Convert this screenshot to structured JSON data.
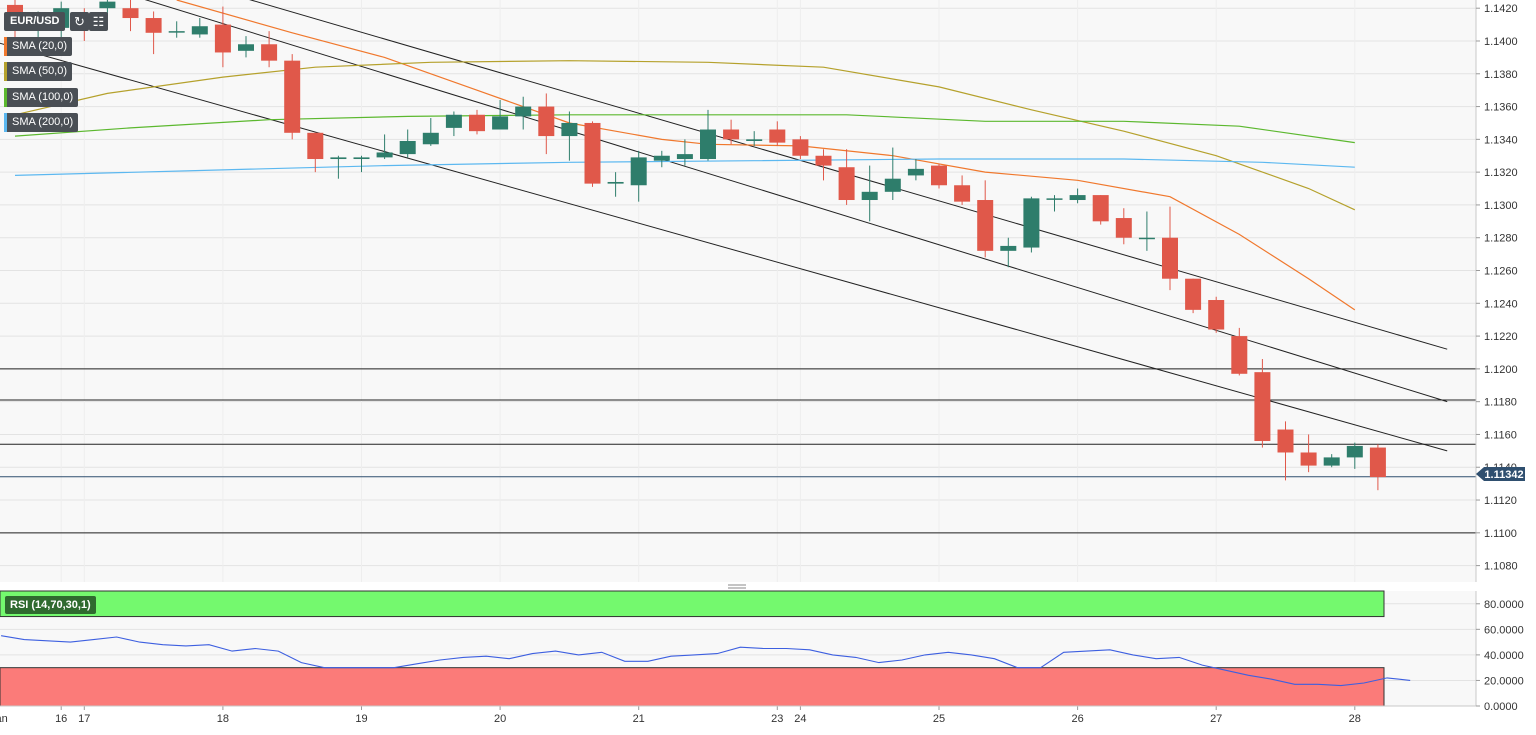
{
  "chart_header": {
    "symbol": "EUR/USD",
    "refresh_icon": "refresh-icon",
    "settings_icon": "chart-settings-icon"
  },
  "indicators": [
    {
      "label": "SMA (20,0)",
      "color": "#f0782d"
    },
    {
      "label": "SMA (50,0)",
      "color": "#b5a12c"
    },
    {
      "label": "SMA (100,0)",
      "color": "#5cb82f"
    },
    {
      "label": "SMA (200,0)",
      "color": "#5cb8f0"
    }
  ],
  "price_label": "1.11342",
  "rsi_label": "RSI (14,70,30,1)",
  "colors": {
    "up": "#2e7d6b",
    "down": "#e0584a",
    "background": "#f8f8f8",
    "rsi_overbought": "#74f96e",
    "rsi_oversold": "#fb7b79",
    "rsi_line": "#3d5fe0",
    "price_tag": "#2f4f6f"
  },
  "chart_data": [
    {
      "type": "candlestick",
      "title": "EUR/USD",
      "ylim": [
        1.107,
        1.1425
      ],
      "y_ticks": [
        "1.1080",
        "1.1100",
        "1.1120",
        "1.1140",
        "1.1160",
        "1.1180",
        "1.1200",
        "1.1220",
        "1.1240",
        "1.1260",
        "1.1280",
        "1.1300",
        "1.1320",
        "1.1340",
        "1.1360",
        "1.1380",
        "1.1400",
        "1.1420"
      ],
      "x_tick_labels": [
        "Jan",
        "16",
        "17",
        "18",
        "19",
        "20",
        "21",
        "23",
        "24",
        "25",
        "26",
        "27",
        "28"
      ],
      "candles": [
        [
          1.1422,
          1.1426,
          1.1395,
          1.1412
        ],
        [
          1.1408,
          1.1418,
          1.1398,
          1.141
        ],
        [
          1.1408,
          1.1424,
          1.1402,
          1.142
        ],
        [
          1.1415,
          1.142,
          1.14,
          1.1408
        ],
        [
          1.142,
          1.1428,
          1.1414,
          1.1424
        ],
        [
          1.142,
          1.1425,
          1.1406,
          1.1414
        ],
        [
          1.1414,
          1.1418,
          1.1392,
          1.1405
        ],
        [
          1.1406,
          1.1412,
          1.1402,
          1.1406
        ],
        [
          1.1404,
          1.1414,
          1.1402,
          1.1409
        ],
        [
          1.141,
          1.1421,
          1.1384,
          1.1393
        ],
        [
          1.1394,
          1.1403,
          1.139,
          1.1398
        ],
        [
          1.1398,
          1.1406,
          1.1384,
          1.1388
        ],
        [
          1.1388,
          1.1392,
          1.134,
          1.1344
        ],
        [
          1.1344,
          1.1344,
          1.132,
          1.1328
        ],
        [
          1.1328,
          1.133,
          1.1316,
          1.1329
        ],
        [
          1.1328,
          1.133,
          1.132,
          1.1329
        ],
        [
          1.1329,
          1.1343,
          1.1328,
          1.1332
        ],
        [
          1.1331,
          1.1346,
          1.1329,
          1.1339
        ],
        [
          1.1337,
          1.1353,
          1.1336,
          1.1344
        ],
        [
          1.1347,
          1.1357,
          1.1342,
          1.1355
        ],
        [
          1.1355,
          1.1358,
          1.1343,
          1.1345
        ],
        [
          1.1346,
          1.1364,
          1.1346,
          1.1354
        ],
        [
          1.1354,
          1.1366,
          1.1346,
          1.136
        ],
        [
          1.136,
          1.1368,
          1.1331,
          1.1342
        ],
        [
          1.1342,
          1.1357,
          1.1327,
          1.135
        ],
        [
          1.135,
          1.1351,
          1.1311,
          1.1313
        ],
        [
          1.1313,
          1.132,
          1.1305,
          1.1314
        ],
        [
          1.1312,
          1.1333,
          1.1302,
          1.1329
        ],
        [
          1.1327,
          1.1333,
          1.1323,
          1.133
        ],
        [
          1.1328,
          1.134,
          1.1324,
          1.1331
        ],
        [
          1.1328,
          1.1358,
          1.1327,
          1.1346
        ],
        [
          1.1346,
          1.1352,
          1.1337,
          1.134
        ],
        [
          1.1339,
          1.1345,
          1.1336,
          1.134
        ],
        [
          1.1346,
          1.1351,
          1.1336,
          1.1338
        ],
        [
          1.134,
          1.1342,
          1.1328,
          1.133
        ],
        [
          1.133,
          1.1334,
          1.1315,
          1.1324
        ],
        [
          1.1323,
          1.1334,
          1.13,
          1.1303
        ],
        [
          1.1303,
          1.1324,
          1.129,
          1.1308
        ],
        [
          1.1308,
          1.1335,
          1.1303,
          1.1316
        ],
        [
          1.1318,
          1.1328,
          1.1315,
          1.1322
        ],
        [
          1.1324,
          1.1325,
          1.131,
          1.1312
        ],
        [
          1.1312,
          1.1318,
          1.13,
          1.1302
        ],
        [
          1.1303,
          1.1315,
          1.1268,
          1.1272
        ],
        [
          1.1272,
          1.128,
          1.1262,
          1.1275
        ],
        [
          1.1274,
          1.1305,
          1.1271,
          1.1304
        ],
        [
          1.1304,
          1.1306,
          1.1296,
          1.1304
        ],
        [
          1.1303,
          1.131,
          1.1301,
          1.1306
        ],
        [
          1.1306,
          1.1306,
          1.1288,
          1.129
        ],
        [
          1.1292,
          1.1298,
          1.1276,
          1.128
        ],
        [
          1.128,
          1.1296,
          1.1272,
          1.128
        ],
        [
          1.128,
          1.1299,
          1.1248,
          1.1255
        ],
        [
          1.1255,
          1.1255,
          1.1234,
          1.1236
        ],
        [
          1.1242,
          1.1244,
          1.1222,
          1.1224
        ],
        [
          1.122,
          1.1225,
          1.1196,
          1.1197
        ],
        [
          1.1198,
          1.1206,
          1.1152,
          1.1156
        ],
        [
          1.1163,
          1.1168,
          1.1132,
          1.1149
        ],
        [
          1.1149,
          1.116,
          1.1137,
          1.1141
        ],
        [
          1.1141,
          1.1148,
          1.114,
          1.1146
        ],
        [
          1.1146,
          1.1155,
          1.1139,
          1.1153
        ],
        [
          1.1152,
          1.1154,
          1.1126,
          1.1134
        ]
      ],
      "sma": {
        "SMA (20,0)": [
          [
            7,
            1.1425
          ],
          [
            12,
            1.1405
          ],
          [
            16,
            1.139
          ],
          [
            20,
            1.137
          ],
          [
            24,
            1.135
          ],
          [
            28,
            1.134
          ],
          [
            30,
            1.1337
          ],
          [
            34,
            1.1336
          ],
          [
            38,
            1.133
          ],
          [
            42,
            1.132
          ],
          [
            46,
            1.1315
          ],
          [
            50,
            1.1305
          ],
          [
            53,
            1.1282
          ],
          [
            56,
            1.1255
          ],
          [
            58,
            1.1236
          ]
        ],
        "SMA (50,0)": [
          [
            0,
            1.1355
          ],
          [
            4,
            1.1368
          ],
          [
            9,
            1.1378
          ],
          [
            13,
            1.1384
          ],
          [
            18,
            1.1387
          ],
          [
            24,
            1.1388
          ],
          [
            30,
            1.1387
          ],
          [
            35,
            1.1384
          ],
          [
            40,
            1.1372
          ],
          [
            44,
            1.1358
          ],
          [
            48,
            1.1345
          ],
          [
            52,
            1.133
          ],
          [
            56,
            1.131
          ],
          [
            58,
            1.1297
          ]
        ],
        "SMA (100,0)": [
          [
            0,
            1.1342
          ],
          [
            5,
            1.1347
          ],
          [
            11,
            1.1352
          ],
          [
            17,
            1.1354
          ],
          [
            24,
            1.1355
          ],
          [
            30,
            1.1355
          ],
          [
            36,
            1.1355
          ],
          [
            42,
            1.1351
          ],
          [
            48,
            1.1351
          ],
          [
            53,
            1.1348
          ],
          [
            58,
            1.1338
          ]
        ],
        "SMA (200,0)": [
          [
            0,
            1.1318
          ],
          [
            8,
            1.1321
          ],
          [
            16,
            1.1324
          ],
          [
            24,
            1.1326
          ],
          [
            32,
            1.1327
          ],
          [
            40,
            1.1328
          ],
          [
            48,
            1.1328
          ],
          [
            54,
            1.1326
          ],
          [
            58,
            1.1323
          ]
        ]
      },
      "horizontal_levels": [
        1.12,
        1.1181,
        1.1154,
        1.11
      ],
      "channel_lines": [
        [
          [
            -1,
            1.14
          ],
          [
            62,
            1.115
          ]
        ],
        [
          [
            5,
            1.1428
          ],
          [
            62,
            1.118
          ]
        ],
        [
          [
            9,
            1.143
          ],
          [
            62,
            1.1212
          ]
        ]
      ],
      "last_price": 1.11342
    },
    {
      "type": "line",
      "title": "RSI (14,70,30,1)",
      "ylim": [
        0,
        90
      ],
      "y_ticks": [
        "0.0000",
        "20.0000",
        "40.0000",
        "60.0000",
        "80.0000"
      ],
      "overbought": 70,
      "oversold": 30,
      "values": [
        55,
        52,
        51,
        50,
        52,
        54,
        50,
        48,
        47,
        48,
        43,
        45,
        43,
        34,
        30,
        30,
        30,
        30,
        33,
        36,
        38,
        39,
        37,
        41,
        43,
        40,
        42,
        35,
        35,
        39,
        40,
        41,
        46,
        45,
        45,
        44,
        40,
        38,
        34,
        36,
        40,
        42,
        40,
        37,
        30,
        30,
        42,
        43,
        44,
        40,
        37,
        38,
        32,
        28,
        24,
        21,
        17,
        17,
        16,
        18,
        22,
        20
      ]
    }
  ]
}
